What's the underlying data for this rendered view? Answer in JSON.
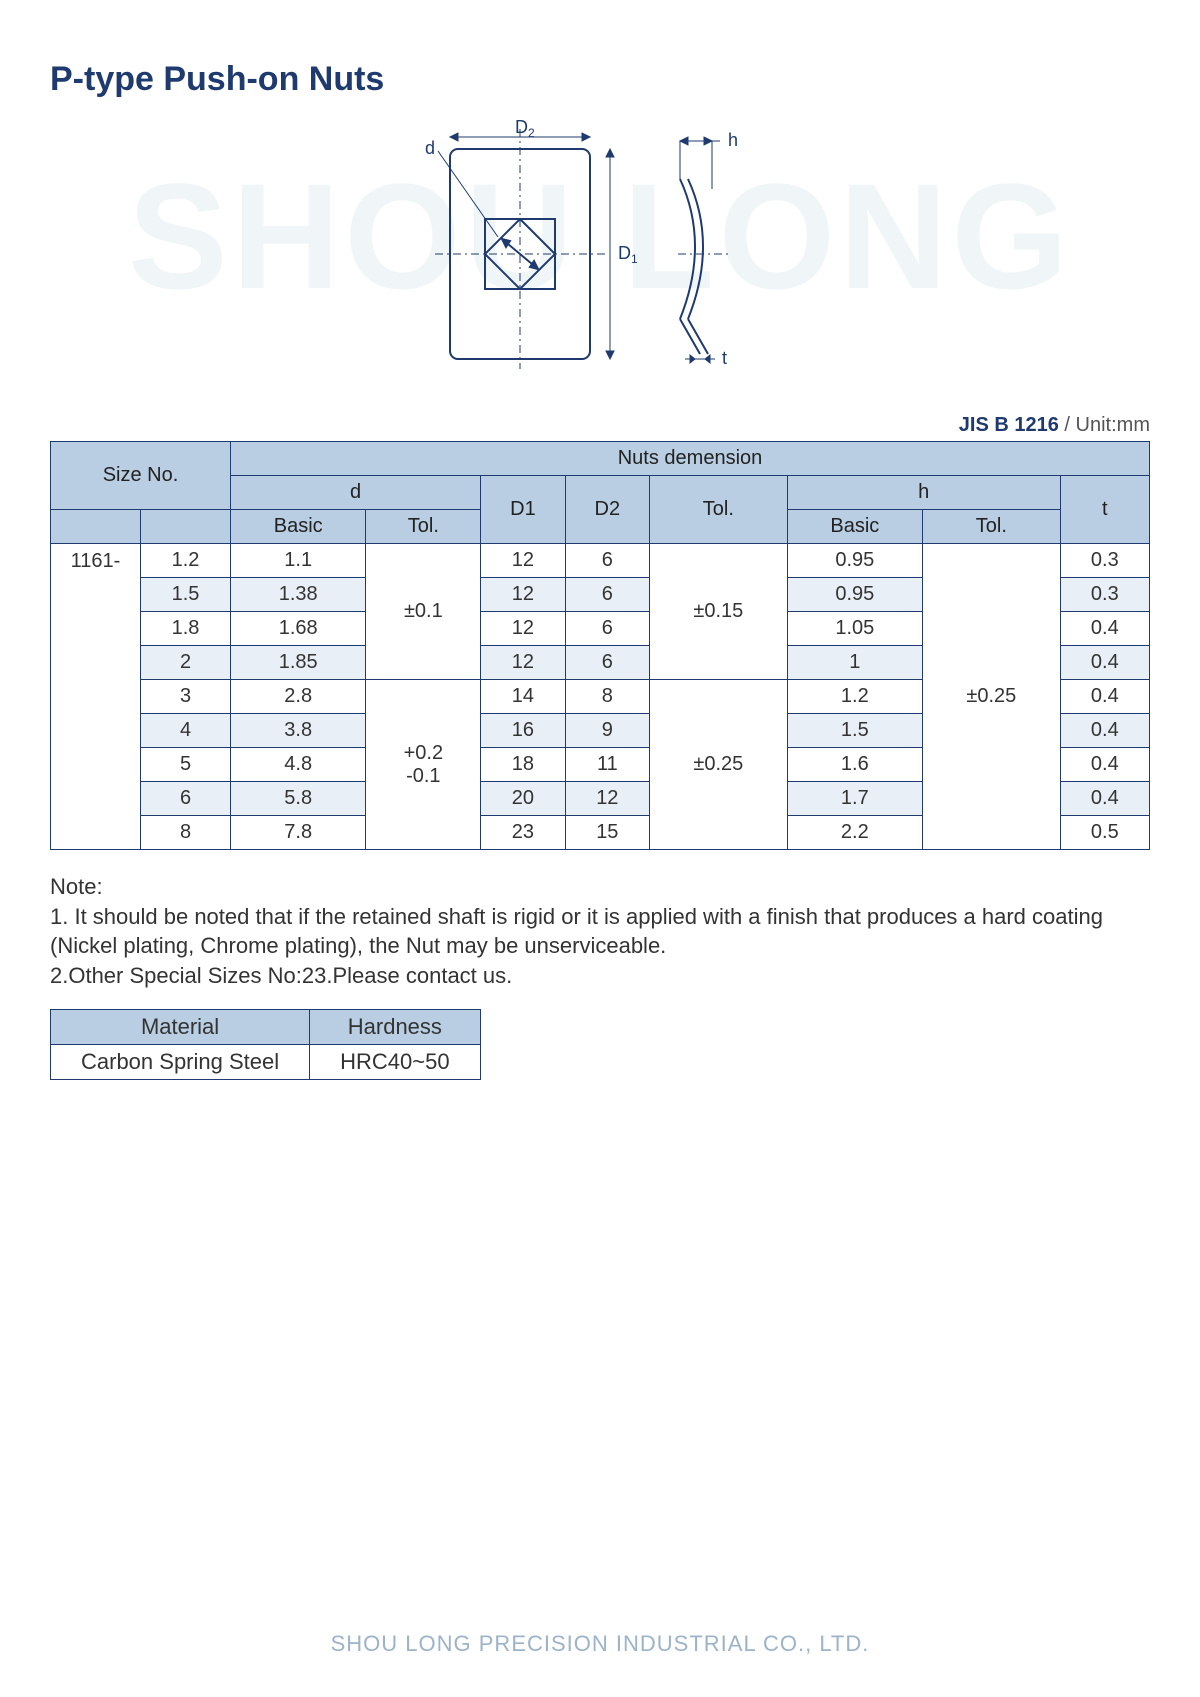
{
  "title": "P-type Push-on Nuts",
  "watermark": "SHOU LONG",
  "diagram": {
    "labels": {
      "d": "d",
      "D1": "D1",
      "D2": "D2",
      "h": "h",
      "t": "t"
    },
    "stroke": "#1e3a6e",
    "stroke_dash": "#1e3a6e"
  },
  "standard": {
    "code": "JIS B 1216",
    "unit": " / Unit:mm"
  },
  "headers": {
    "size_no": "Size No.",
    "nuts_dimension": "Nuts demension",
    "d": "d",
    "d_basic": "Basic",
    "d_tol": "Tol.",
    "D1": "D1",
    "D2": "D2",
    "Tol": "Tol.",
    "h": "h",
    "h_basic": "Basic",
    "h_tol": "Tol.",
    "t": "t"
  },
  "series_prefix": "1161-",
  "d_tol_group1": "±0.1",
  "d_tol_group2_line1": "+0.2",
  "d_tol_group2_line2": "-0.1",
  "tol_group1": "±0.15",
  "tol_group2": "±0.25",
  "h_tol_all": "±0.25",
  "rows": [
    {
      "sz": "1.2",
      "d": "1.1",
      "D1": "12",
      "D2": "6",
      "h": "0.95",
      "t": "0.3",
      "alt": false
    },
    {
      "sz": "1.5",
      "d": "1.38",
      "D1": "12",
      "D2": "6",
      "h": "0.95",
      "t": "0.3",
      "alt": true
    },
    {
      "sz": "1.8",
      "d": "1.68",
      "D1": "12",
      "D2": "6",
      "h": "1.05",
      "t": "0.4",
      "alt": false
    },
    {
      "sz": "2",
      "d": "1.85",
      "D1": "12",
      "D2": "6",
      "h": "1",
      "t": "0.4",
      "alt": true
    },
    {
      "sz": "3",
      "d": "2.8",
      "D1": "14",
      "D2": "8",
      "h": "1.2",
      "t": "0.4",
      "alt": false
    },
    {
      "sz": "4",
      "d": "3.8",
      "D1": "16",
      "D2": "9",
      "h": "1.5",
      "t": "0.4",
      "alt": true
    },
    {
      "sz": "5",
      "d": "4.8",
      "D1": "18",
      "D2": "11",
      "h": "1.6",
      "t": "0.4",
      "alt": false
    },
    {
      "sz": "6",
      "d": "5.8",
      "D1": "20",
      "D2": "12",
      "h": "1.7",
      "t": "0.4",
      "alt": true
    },
    {
      "sz": "8",
      "d": "7.8",
      "D1": "23",
      "D2": "15",
      "h": "2.2",
      "t": "0.5",
      "alt": false
    }
  ],
  "note": {
    "title": "Note:",
    "line1": "1. It should be noted that if the retained shaft is rigid or it is applied with a finish that produces a hard coating (Nickel plating, Chrome plating), the Nut may be unserviceable.",
    "line2": "2.Other Special Sizes No:23.Please contact us."
  },
  "material_table": {
    "h_material": "Material",
    "h_hardness": "Hardness",
    "material": "Carbon Spring Steel",
    "hardness": "HRC40~50"
  },
  "footer": "SHOU LONG PRECISION INDUSTRIAL CO., LTD."
}
